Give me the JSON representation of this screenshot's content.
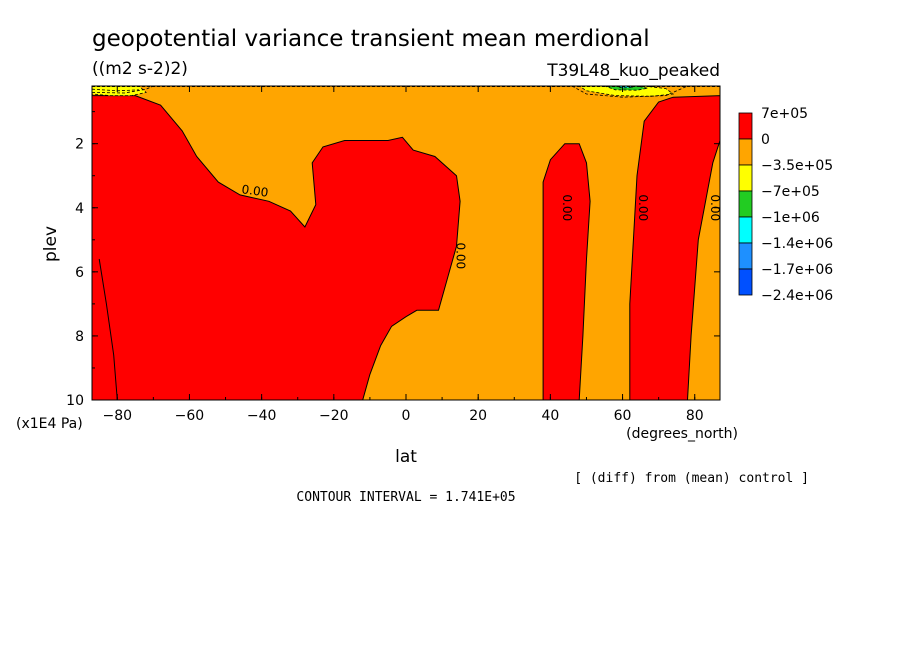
{
  "chart_data": {
    "type": "contour",
    "title": "geopotential variance transient mean merdional",
    "units": "((m2 s-2)2)",
    "experiment": "T39L48_kuo_peaked",
    "xlabel": "lat",
    "xunits": "(degrees_north)",
    "ylabel": "plev",
    "yunits": "(x1E4 Pa)",
    "xlim": [
      -87,
      87
    ],
    "ylim": [
      0.2,
      10
    ],
    "y_inverted": true,
    "xticks": [
      -80,
      -60,
      -40,
      -20,
      0,
      20,
      40,
      60,
      80
    ],
    "xtick_labels": [
      "-80",
      "-60",
      "-40",
      "-20",
      "0",
      "20",
      "40",
      "60",
      "80"
    ],
    "yticks": [
      2,
      4,
      6,
      8,
      10
    ],
    "ytick_labels": [
      "2",
      "4",
      "6",
      "8",
      "10"
    ],
    "diff_note": "[ (diff) from (mean) control ]",
    "contour_interval": "CONTOUR INTERVAL = 1.741E+05",
    "contour_labels": [
      "0.00",
      "0.00",
      "0.00",
      "0.00",
      "0.00",
      "0.00"
    ],
    "colorbar": {
      "labels": [
        "7e+05",
        "0",
        "-3.5e+05",
        "-7e+05",
        "-1e+06",
        "-1.4e+06",
        "-1.7e+06",
        "-2.4e+06"
      ],
      "colors": [
        "#ff0000",
        "#ffa500",
        "#ffff00",
        "#22cc22",
        "#00ffff",
        "#1e90ff",
        "#0050ff"
      ]
    },
    "colors": {
      "positive": "#ff0000",
      "slightly_negative": "#ffa500",
      "negative": "#ffff00",
      "more_negative": "#22cc22",
      "strong_negative": "#00ffff"
    },
    "positive_regions": [
      {
        "name": "southern-hemisphere-lobe",
        "points": [
          [
            -87,
            10
          ],
          [
            -87,
            0.5
          ],
          [
            -75,
            0.5
          ],
          [
            -68,
            0.8
          ],
          [
            -62,
            1.6
          ],
          [
            -58,
            2.4
          ],
          [
            -52,
            3.2
          ],
          [
            -46,
            3.6
          ],
          [
            -38,
            3.8
          ],
          [
            -32,
            4.1
          ],
          [
            -28,
            4.6
          ],
          [
            -25,
            3.9
          ],
          [
            -26,
            2.6
          ],
          [
            -23,
            2.1
          ],
          [
            -17,
            1.9
          ],
          [
            -5,
            1.9
          ],
          [
            -1,
            1.8
          ],
          [
            2,
            2.2
          ],
          [
            8,
            2.4
          ],
          [
            14,
            3.0
          ],
          [
            15,
            3.8
          ],
          [
            14,
            5.2
          ],
          [
            12,
            6.0
          ],
          [
            9,
            7.2
          ],
          [
            6,
            7.2
          ],
          [
            3,
            7.2
          ],
          [
            0,
            7.4
          ],
          [
            -4,
            7.7
          ],
          [
            -7,
            8.3
          ],
          [
            -10,
            9.2
          ],
          [
            -12,
            10
          ]
        ]
      },
      {
        "name": "tropical-band-north",
        "points": [
          [
            38,
            10
          ],
          [
            38,
            3.2
          ],
          [
            40,
            2.5
          ],
          [
            44,
            2.0
          ],
          [
            48,
            2.0
          ],
          [
            50,
            2.6
          ],
          [
            51,
            3.8
          ],
          [
            50,
            5.6
          ],
          [
            49,
            8.0
          ],
          [
            48,
            10
          ]
        ]
      },
      {
        "name": "high-latitude-band-north",
        "points": [
          [
            62,
            10
          ],
          [
            62,
            7.0
          ],
          [
            64,
            3.0
          ],
          [
            66,
            1.3
          ],
          [
            70,
            0.7
          ],
          [
            74,
            0.55
          ],
          [
            87,
            0.5
          ],
          [
            87,
            1.9
          ],
          [
            85,
            2.6
          ],
          [
            81,
            5.0
          ],
          [
            79,
            8.0
          ],
          [
            78,
            10
          ]
        ]
      }
    ],
    "negative_regions": [
      {
        "name": "sh-top-negative",
        "color": "#ffff00",
        "points": [
          [
            -87,
            0.2
          ],
          [
            -80,
            0.2
          ],
          [
            -74,
            0.2
          ],
          [
            -72,
            0.4
          ],
          [
            -76,
            0.5
          ],
          [
            -82,
            0.5
          ],
          [
            -87,
            0.45
          ]
        ]
      },
      {
        "name": "nh-top-negative",
        "color": "#ffff00",
        "points": [
          [
            48,
            0.2
          ],
          [
            66,
            0.2
          ],
          [
            72,
            0.28
          ],
          [
            74,
            0.45
          ],
          [
            68,
            0.52
          ],
          [
            58,
            0.5
          ],
          [
            50,
            0.35
          ]
        ]
      },
      {
        "name": "nh-top-core",
        "color": "#22cc22",
        "points": [
          [
            55,
            0.2
          ],
          [
            64,
            0.2
          ],
          [
            67,
            0.27
          ],
          [
            64,
            0.33
          ],
          [
            58,
            0.32
          ]
        ]
      },
      {
        "name": "nh-top-peak",
        "color": "#00ffff",
        "points": [
          [
            58,
            0.2
          ],
          [
            62,
            0.2
          ],
          [
            63,
            0.24
          ],
          [
            60,
            0.26
          ]
        ]
      }
    ]
  }
}
